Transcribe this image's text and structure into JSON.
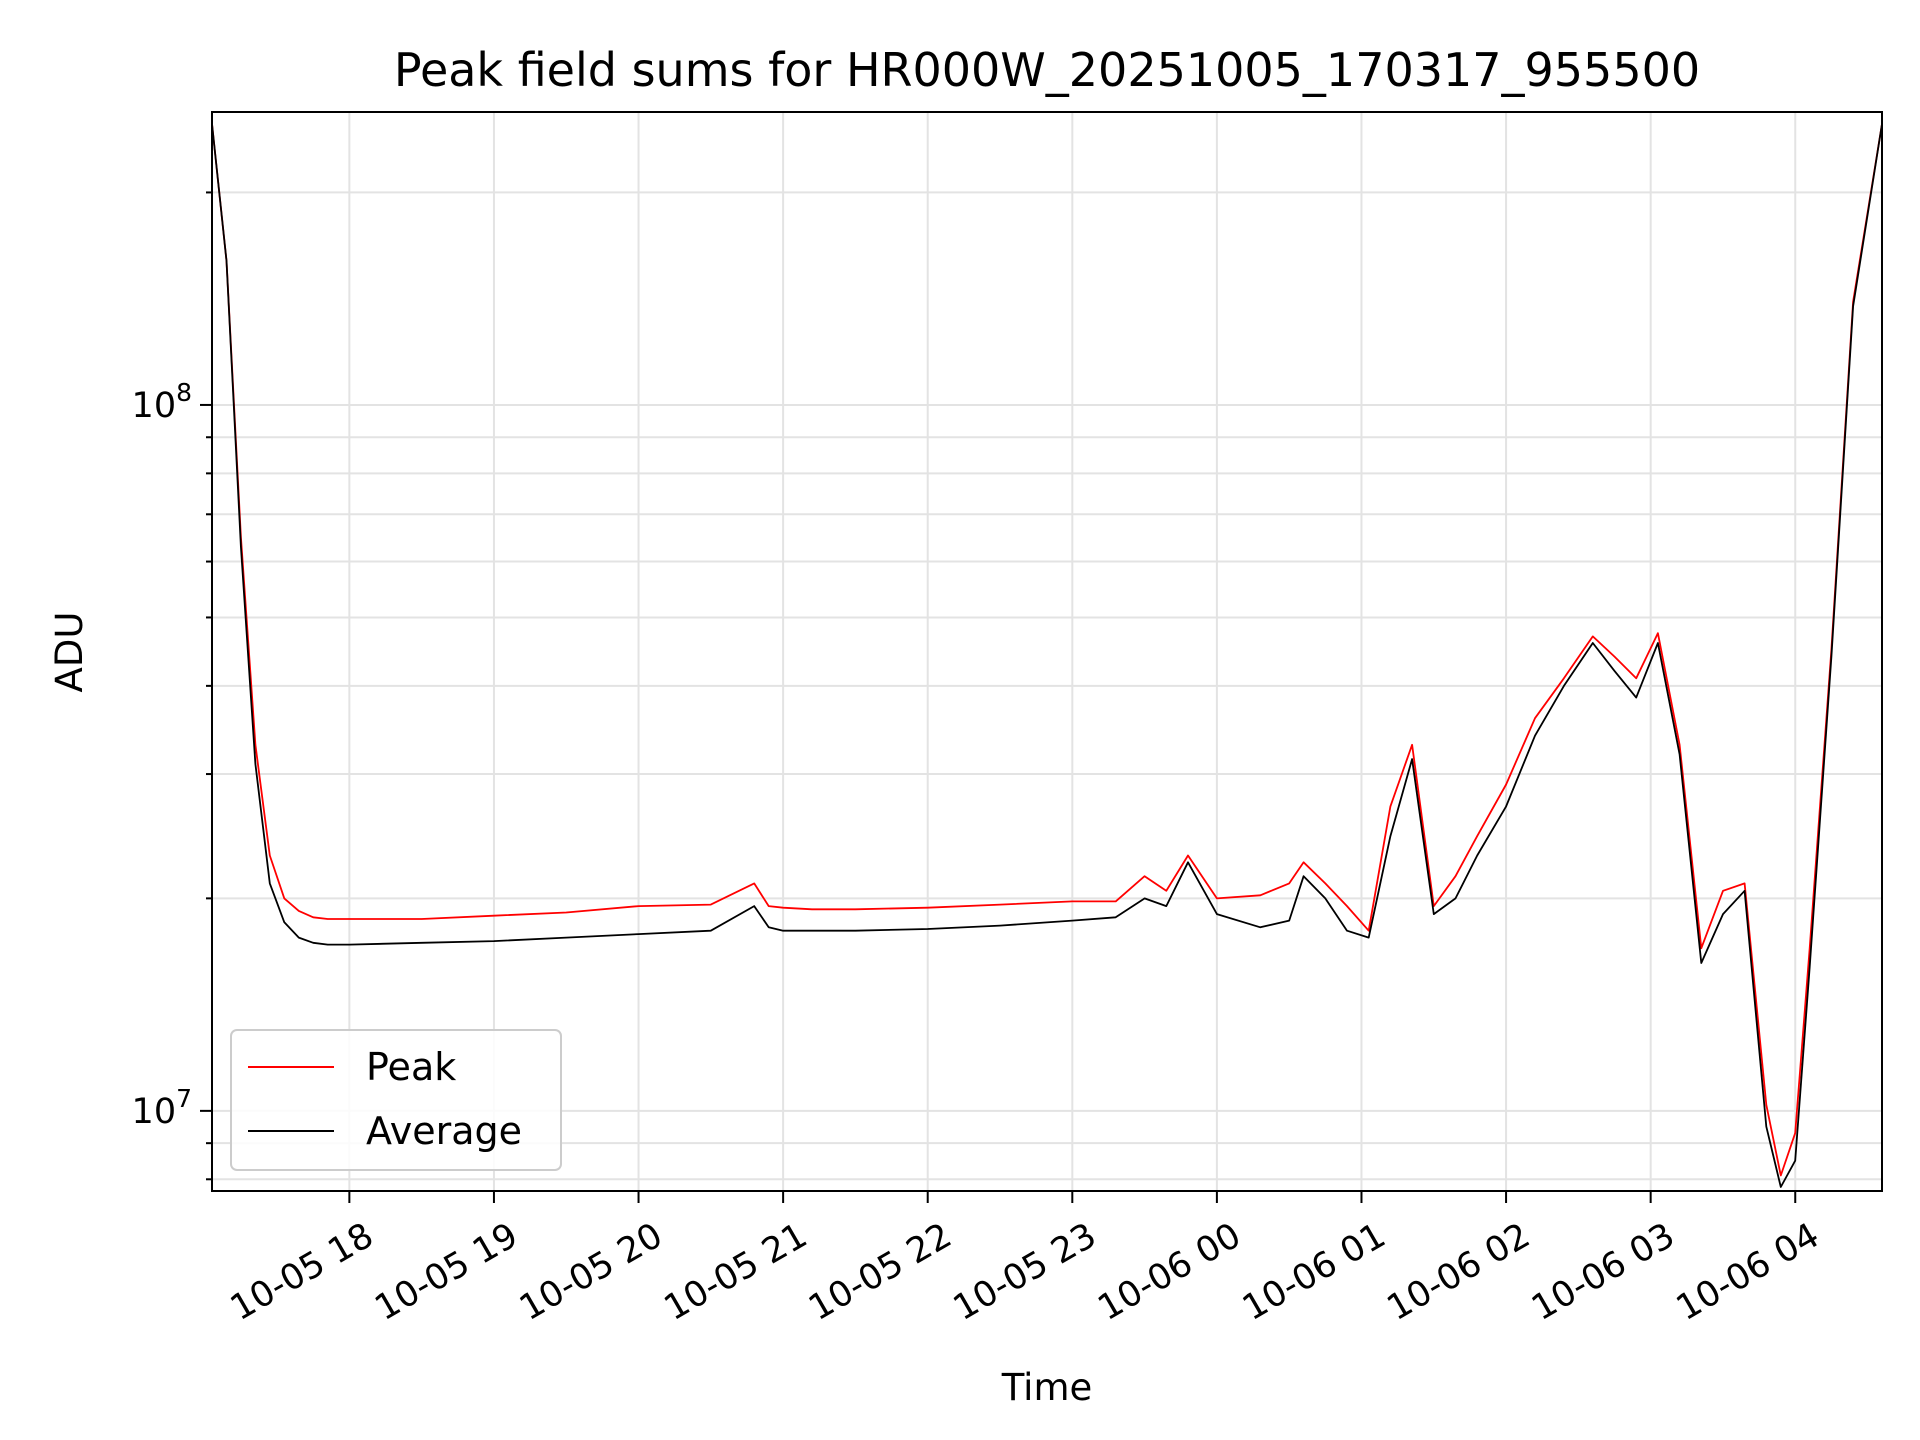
{
  "chart_data": {
    "type": "line",
    "title": "Peak field sums for HR000W_20251005_170317_955500",
    "xlabel": "Time",
    "ylabel": "ADU",
    "yscale": "log",
    "ylim": [
      7700000,
      260000000
    ],
    "xlim_hours": [
      17.05,
      4.6
    ],
    "grid": true,
    "legend_location": "lower-left",
    "x_ticks": [
      {
        "label": "10-05 18",
        "hour": 18
      },
      {
        "label": "10-05 19",
        "hour": 19
      },
      {
        "label": "10-05 20",
        "hour": 20
      },
      {
        "label": "10-05 21",
        "hour": 21
      },
      {
        "label": "10-05 22",
        "hour": 22
      },
      {
        "label": "10-05 23",
        "hour": 23
      },
      {
        "label": "10-06 00",
        "hour": 24
      },
      {
        "label": "10-06 01",
        "hour": 25
      },
      {
        "label": "10-06 02",
        "hour": 26
      },
      {
        "label": "10-06 03",
        "hour": 27
      },
      {
        "label": "10-06 04",
        "hour": 28
      }
    ],
    "y_ticks": [
      {
        "base": "10",
        "exp": "7",
        "value": 10000000
      },
      {
        "base": "10",
        "exp": "8",
        "value": 100000000
      }
    ],
    "series": [
      {
        "name": "Peak",
        "color": "#ff0000",
        "x_hours": [
          17.05,
          17.15,
          17.25,
          17.35,
          17.45,
          17.55,
          17.65,
          17.75,
          17.85,
          18.0,
          18.5,
          19.0,
          19.5,
          20.0,
          20.5,
          20.8,
          20.9,
          21.0,
          21.2,
          21.5,
          22.0,
          22.5,
          23.0,
          23.3,
          23.5,
          23.65,
          23.8,
          24.0,
          24.3,
          24.5,
          24.6,
          24.75,
          24.9,
          25.05,
          25.2,
          25.35,
          25.5,
          25.65,
          25.8,
          26.0,
          26.2,
          26.4,
          26.6,
          26.75,
          26.9,
          27.05,
          27.2,
          27.35,
          27.5,
          27.65,
          27.8,
          27.9,
          28.0,
          28.1,
          28.25,
          28.4,
          28.6
        ],
        "values": [
          250000000,
          160000000,
          65000000,
          33000000,
          23000000,
          20000000,
          19200000,
          18800000,
          18700000,
          18700000,
          18700000,
          18900000,
          19100000,
          19500000,
          19600000,
          21000000,
          19500000,
          19400000,
          19300000,
          19300000,
          19400000,
          19600000,
          19800000,
          19800000,
          21500000,
          20500000,
          23000000,
          20000000,
          20200000,
          21000000,
          22500000,
          21000000,
          19500000,
          18000000,
          27000000,
          33000000,
          19500000,
          21500000,
          24500000,
          29000000,
          36000000,
          41000000,
          47000000,
          44000000,
          41000000,
          47500000,
          33000000,
          17000000,
          20500000,
          21000000,
          10200000,
          8100000,
          9300000,
          17000000,
          45000000,
          140000000,
          250000000
        ]
      },
      {
        "name": "Average",
        "color": "#000000",
        "x_hours": [
          17.05,
          17.15,
          17.25,
          17.35,
          17.45,
          17.55,
          17.65,
          17.75,
          17.85,
          18.0,
          18.5,
          19.0,
          19.5,
          20.0,
          20.5,
          20.8,
          20.9,
          21.0,
          21.2,
          21.5,
          22.0,
          22.5,
          23.0,
          23.3,
          23.5,
          23.65,
          23.8,
          24.0,
          24.3,
          24.5,
          24.6,
          24.75,
          24.9,
          25.05,
          25.2,
          25.35,
          25.5,
          25.65,
          25.8,
          26.0,
          26.2,
          26.4,
          26.6,
          26.75,
          26.9,
          27.05,
          27.2,
          27.35,
          27.5,
          27.65,
          27.8,
          27.9,
          28.0,
          28.1,
          28.25,
          28.4,
          28.6
        ],
        "values": [
          250000000,
          160000000,
          63000000,
          31000000,
          21000000,
          18500000,
          17600000,
          17300000,
          17200000,
          17200000,
          17300000,
          17400000,
          17600000,
          17800000,
          18000000,
          19500000,
          18200000,
          18000000,
          18000000,
          18000000,
          18100000,
          18300000,
          18600000,
          18800000,
          20000000,
          19500000,
          22500000,
          19000000,
          18200000,
          18600000,
          21500000,
          20000000,
          18000000,
          17600000,
          24500000,
          31500000,
          19000000,
          20000000,
          23000000,
          27000000,
          34000000,
          40000000,
          46000000,
          42000000,
          38500000,
          46000000,
          32000000,
          16200000,
          19000000,
          20500000,
          9500000,
          7800000,
          8500000,
          16000000,
          44000000,
          138000000,
          250000000
        ]
      }
    ]
  }
}
